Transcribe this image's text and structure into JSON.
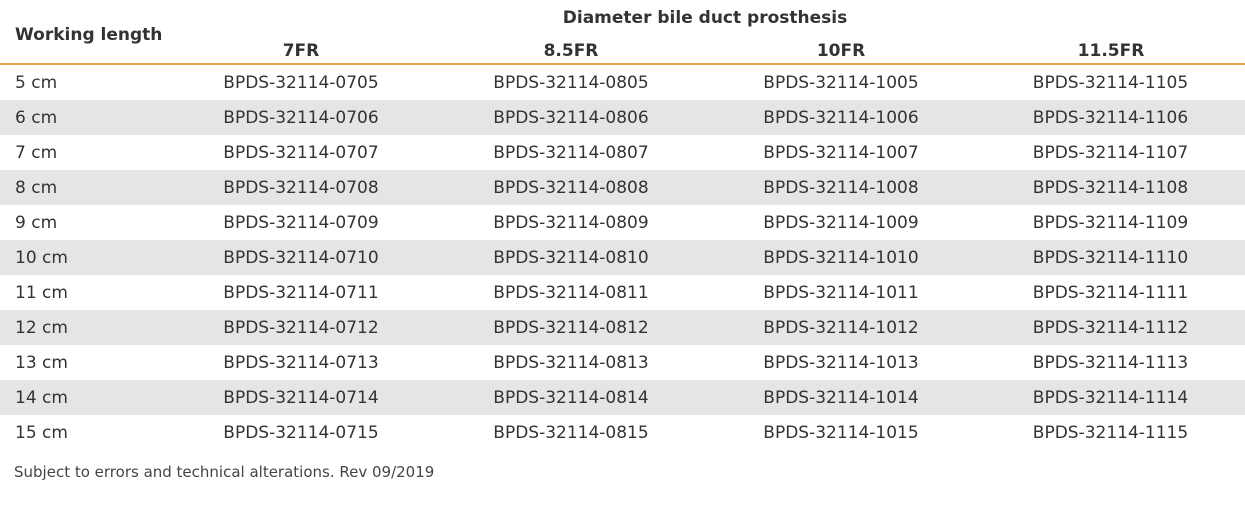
{
  "table": {
    "row_header": "Working length",
    "group_header": "Diameter bile duct prosthesis",
    "columns": [
      "7FR",
      "8.5FR",
      "10FR",
      "11.5FR"
    ],
    "rows": [
      {
        "length": "5 cm",
        "codes": [
          "BPDS-32114-0705",
          "BPDS-32114-0805",
          "BPDS-32114-1005",
          "BPDS-32114-1105"
        ]
      },
      {
        "length": "6 cm",
        "codes": [
          "BPDS-32114-0706",
          "BPDS-32114-0806",
          "BPDS-32114-1006",
          "BPDS-32114-1106"
        ]
      },
      {
        "length": "7 cm",
        "codes": [
          "BPDS-32114-0707",
          "BPDS-32114-0807",
          "BPDS-32114-1007",
          "BPDS-32114-1107"
        ]
      },
      {
        "length": "8 cm",
        "codes": [
          "BPDS-32114-0708",
          "BPDS-32114-0808",
          "BPDS-32114-1008",
          "BPDS-32114-1108"
        ]
      },
      {
        "length": "9 cm",
        "codes": [
          "BPDS-32114-0709",
          "BPDS-32114-0809",
          "BPDS-32114-1009",
          "BPDS-32114-1109"
        ]
      },
      {
        "length": "10 cm",
        "codes": [
          "BPDS-32114-0710",
          "BPDS-32114-0810",
          "BPDS-32114-1010",
          "BPDS-32114-1110"
        ]
      },
      {
        "length": "11 cm",
        "codes": [
          "BPDS-32114-0711",
          "BPDS-32114-0811",
          "BPDS-32114-1011",
          "BPDS-32114-1111"
        ]
      },
      {
        "length": "12 cm",
        "codes": [
          "BPDS-32114-0712",
          "BPDS-32114-0812",
          "BPDS-32114-1012",
          "BPDS-32114-1112"
        ]
      },
      {
        "length": "13 cm",
        "codes": [
          "BPDS-32114-0713",
          "BPDS-32114-0813",
          "BPDS-32114-1013",
          "BPDS-32114-1113"
        ]
      },
      {
        "length": "14 cm",
        "codes": [
          "BPDS-32114-0714",
          "BPDS-32114-0814",
          "BPDS-32114-1014",
          "BPDS-32114-1114"
        ]
      },
      {
        "length": "15 cm",
        "codes": [
          "BPDS-32114-0715",
          "BPDS-32114-0815",
          "BPDS-32114-1015",
          "BPDS-32114-1115"
        ]
      }
    ]
  },
  "footnote": "Subject to errors and technical alterations. Rev 09/2019",
  "colors": {
    "accent_line": "#f0a050",
    "alt_row": "#e5e5e5"
  }
}
